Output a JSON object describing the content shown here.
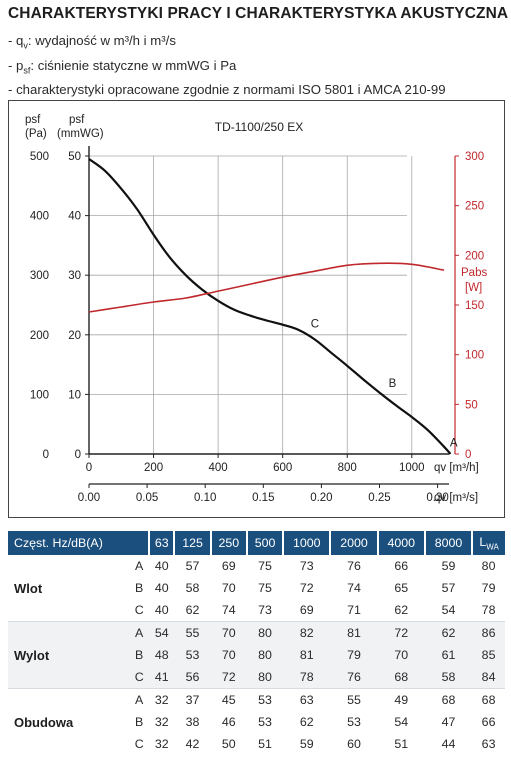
{
  "heading": "CHARAKTERYSTYKI PRACY I CHARAKTERYSTYKA AKUSTYCZNA",
  "notes": [
    {
      "prefix": "- q",
      "sub": "v",
      "text": ": wydajność w m³/h i m³/s"
    },
    {
      "prefix": "- p",
      "sub": "sf",
      "text": ": ciśnienie statyczne w mmWG i Pa"
    },
    {
      "prefix": "- ",
      "sub": "",
      "text": "charakterystyki opracowane zgodnie z normami ISO 5801 i AMCA 210-99"
    }
  ],
  "chart_data": {
    "type": "line",
    "title": "TD-1100/250 EX",
    "y_axis_left": {
      "label": "psf",
      "unit": "(Pa)",
      "ticks": [
        0,
        100,
        200,
        300,
        400,
        500
      ],
      "range": [
        0,
        500
      ]
    },
    "y_axis_left2": {
      "label": "psf",
      "unit": "(mmWG)",
      "ticks": [
        0,
        10,
        20,
        30,
        40,
        50
      ],
      "range": [
        0,
        50
      ]
    },
    "y_axis_right": {
      "label": "Pabs",
      "unit": "[W]",
      "ticks": [
        0,
        50,
        100,
        150,
        200,
        250,
        300
      ],
      "range": [
        0,
        300
      ]
    },
    "x_axis": {
      "label": "qv",
      "unit": "[m³/h]",
      "ticks": [
        0,
        200,
        400,
        600,
        800,
        1000
      ],
      "range": [
        0,
        1140
      ]
    },
    "x_axis2": {
      "label": "qv",
      "unit": "[m³/s]",
      "ticks": [
        "0.00",
        "0.05",
        "0.10",
        "0.15",
        "0.20",
        "0.25",
        "0.30"
      ],
      "range": [
        0,
        0.3167
      ]
    },
    "series": [
      {
        "role": "pressure",
        "color": "#111111",
        "x": [
          0,
          50,
          100,
          150,
          200,
          250,
          300,
          350,
          400,
          450,
          500,
          550,
          600,
          650,
          700,
          750,
          800,
          850,
          900,
          950,
          1000,
          1050,
          1100,
          1120
        ],
        "y": [
          495,
          475,
          445,
          410,
          368,
          330,
          300,
          276,
          257,
          242,
          232,
          224,
          217,
          208,
          192,
          170,
          148,
          125,
          103,
          82,
          62,
          40,
          12,
          0
        ]
      },
      {
        "role": "power",
        "color": "#c0282d",
        "x": [
          0,
          100,
          200,
          300,
          400,
          500,
          600,
          700,
          800,
          900,
          1000,
          1100
        ],
        "y": [
          143,
          148,
          153,
          157,
          164,
          171,
          178,
          184,
          190,
          192,
          191,
          185
        ]
      }
    ],
    "annotations": [
      {
        "label": "C",
        "x": 700,
        "y": 212
      },
      {
        "label": "B",
        "x": 940,
        "y": 112
      },
      {
        "label": "A",
        "x": 1130,
        "y": 13
      }
    ]
  },
  "table": {
    "header_label": "Częst. Hz/dB(A)",
    "frequencies": [
      "63",
      "125",
      "250",
      "500",
      "1000",
      "2000",
      "4000",
      "8000"
    ],
    "lwa": {
      "main": "L",
      "sub": "WA"
    },
    "groups": [
      {
        "name": "Wlot",
        "rows": [
          {
            "label": "A",
            "values": [
              "40",
              "57",
              "69",
              "75",
              "73",
              "76",
              "66",
              "59",
              "80"
            ]
          },
          {
            "label": "B",
            "values": [
              "40",
              "58",
              "70",
              "75",
              "72",
              "74",
              "65",
              "57",
              "79"
            ]
          },
          {
            "label": "C",
            "values": [
              "40",
              "62",
              "74",
              "73",
              "69",
              "71",
              "62",
              "54",
              "78"
            ]
          }
        ]
      },
      {
        "name": "Wylot",
        "rows": [
          {
            "label": "A",
            "values": [
              "54",
              "55",
              "70",
              "80",
              "82",
              "81",
              "72",
              "62",
              "86"
            ]
          },
          {
            "label": "B",
            "values": [
              "48",
              "53",
              "70",
              "80",
              "81",
              "79",
              "70",
              "61",
              "85"
            ]
          },
          {
            "label": "C",
            "values": [
              "41",
              "56",
              "72",
              "80",
              "78",
              "76",
              "68",
              "58",
              "84"
            ]
          }
        ]
      },
      {
        "name": "Obudowa",
        "rows": [
          {
            "label": "A",
            "values": [
              "32",
              "37",
              "45",
              "53",
              "63",
              "55",
              "49",
              "68",
              "68"
            ]
          },
          {
            "label": "B",
            "values": [
              "32",
              "38",
              "46",
              "53",
              "62",
              "53",
              "54",
              "47",
              "66"
            ]
          },
          {
            "label": "C",
            "values": [
              "32",
              "42",
              "50",
              "51",
              "59",
              "60",
              "51",
              "44",
              "63"
            ]
          }
        ]
      }
    ]
  }
}
